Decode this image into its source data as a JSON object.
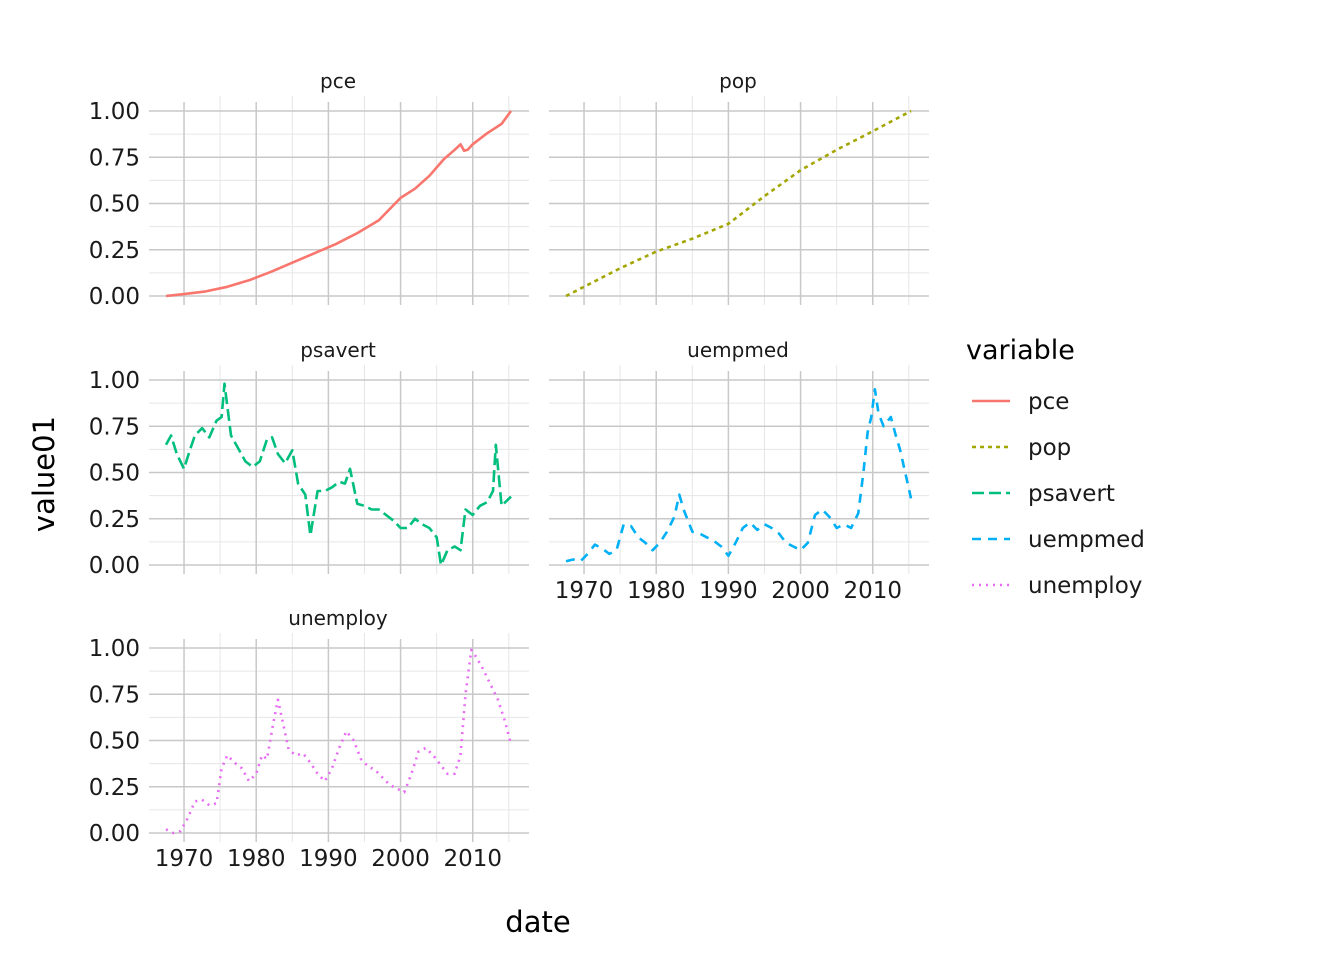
{
  "chart_data": {
    "type": "line",
    "facet_by": "variable",
    "xlabel": "date",
    "ylabel": "value01",
    "x_range": [
      1967.5,
      2015.3
    ],
    "x_ticks": [
      1970,
      1980,
      1990,
      2000,
      2010
    ],
    "x_tick_labels": [
      "1970",
      "1980",
      "1990",
      "2000",
      "2010"
    ],
    "ylim": [
      0,
      1
    ],
    "y_ticks": [
      0,
      0.25,
      0.5,
      0.75,
      1
    ],
    "y_tick_labels": [
      "0.00",
      "0.25",
      "0.50",
      "0.75",
      "1.00"
    ],
    "grid": true,
    "legend": {
      "title": "variable",
      "position": "right",
      "entries": [
        "pce",
        "pop",
        "psavert",
        "uempmed",
        "unemploy"
      ]
    },
    "series": [
      {
        "name": "pce",
        "color": "#F8766D",
        "linetype": "solid",
        "x": [
          1967.5,
          1970,
          1973,
          1976,
          1979,
          1982,
          1985,
          1988,
          1991,
          1994,
          1997,
          2000,
          2002,
          2004,
          2006,
          2007.5,
          2008.3,
          2008.8,
          2009.3,
          2010,
          2012,
          2014,
          2015.3
        ],
        "values": [
          0,
          0.01,
          0.025,
          0.05,
          0.085,
          0.13,
          0.18,
          0.23,
          0.28,
          0.34,
          0.41,
          0.53,
          0.58,
          0.65,
          0.74,
          0.79,
          0.82,
          0.785,
          0.79,
          0.82,
          0.88,
          0.93,
          1.0
        ]
      },
      {
        "name": "pop",
        "color": "#A3A500",
        "linetype": "dotted-dash",
        "x": [
          1967.5,
          1970,
          1975,
          1980,
          1985,
          1990,
          1995,
          2000,
          2005,
          2010,
          2015.3
        ],
        "values": [
          0,
          0.05,
          0.15,
          0.24,
          0.31,
          0.39,
          0.54,
          0.68,
          0.79,
          0.89,
          1.0
        ]
      },
      {
        "name": "psavert",
        "color": "#00BF7D",
        "linetype": "longdash",
        "x": [
          1967.5,
          1968.2,
          1969,
          1970,
          1970.8,
          1971.5,
          1972.5,
          1973.5,
          1974.5,
          1975.2,
          1975.6,
          1976.5,
          1977.5,
          1978.5,
          1979.5,
          1980.5,
          1981.5,
          1982.2,
          1983,
          1984,
          1985,
          1985.8,
          1986.8,
          1987.5,
          1988.5,
          1989.5,
          1990.5,
          1991.5,
          1992.3,
          1993,
          1994,
          1995,
          1996,
          1997,
          1998,
          1999,
          2000,
          2001,
          2002,
          2003,
          2004,
          2005,
          2005.6,
          2006.5,
          2007.5,
          2008.3,
          2009,
          2010,
          2011,
          2012,
          2012.8,
          2013.2,
          2014,
          2015.3
        ],
        "values": [
          0.65,
          0.7,
          0.6,
          0.52,
          0.62,
          0.7,
          0.74,
          0.69,
          0.78,
          0.8,
          0.98,
          0.7,
          0.63,
          0.56,
          0.53,
          0.56,
          0.68,
          0.69,
          0.6,
          0.55,
          0.62,
          0.44,
          0.38,
          0.16,
          0.4,
          0.4,
          0.42,
          0.45,
          0.44,
          0.52,
          0.33,
          0.32,
          0.3,
          0.3,
          0.27,
          0.24,
          0.2,
          0.2,
          0.25,
          0.22,
          0.2,
          0.15,
          0.0,
          0.08,
          0.1,
          0.08,
          0.3,
          0.27,
          0.32,
          0.34,
          0.4,
          0.65,
          0.32,
          0.37
        ]
      },
      {
        "name": "uempmed",
        "color": "#00B0F6",
        "linetype": "dashed",
        "x": [
          1967.5,
          1968.5,
          1969.5,
          1970.5,
          1971.5,
          1972.5,
          1973.5,
          1974.5,
          1975.5,
          1976.5,
          1977.5,
          1978.5,
          1979.5,
          1980.5,
          1981.5,
          1982.5,
          1983.2,
          1983.8,
          1985,
          1986,
          1987,
          1988,
          1989,
          1990,
          1991,
          1992,
          1993,
          1994,
          1995,
          1996,
          1997,
          1998,
          1999,
          2000,
          2001,
          2002,
          2003,
          2004,
          2005,
          2006,
          2007,
          2008,
          2008.7,
          2009.3,
          2009.8,
          2010.3,
          2010.8,
          2011.5,
          2012.5,
          2013.2,
          2013.8,
          2014.5,
          2015.3
        ],
        "values": [
          0.02,
          0.03,
          0.02,
          0.06,
          0.11,
          0.09,
          0.06,
          0.08,
          0.22,
          0.21,
          0.15,
          0.12,
          0.08,
          0.12,
          0.18,
          0.26,
          0.38,
          0.3,
          0.18,
          0.17,
          0.15,
          0.13,
          0.1,
          0.05,
          0.12,
          0.2,
          0.23,
          0.19,
          0.22,
          0.2,
          0.17,
          0.12,
          0.1,
          0.08,
          0.12,
          0.27,
          0.3,
          0.26,
          0.2,
          0.22,
          0.2,
          0.28,
          0.5,
          0.72,
          0.8,
          0.95,
          0.82,
          0.75,
          0.8,
          0.7,
          0.62,
          0.5,
          0.36
        ]
      },
      {
        "name": "unemploy",
        "color": "#E76BF3",
        "linetype": "dotted",
        "x": [
          1967.5,
          1968.5,
          1969.5,
          1970.5,
          1971.5,
          1972.5,
          1973.5,
          1974.5,
          1975.2,
          1976,
          1977,
          1978,
          1979,
          1980,
          1980.8,
          1981.5,
          1982.3,
          1983,
          1983.8,
          1984.5,
          1985.5,
          1986.5,
          1987.5,
          1988.5,
          1989.5,
          1990.5,
          1991.5,
          1992.5,
          1993.5,
          1994.5,
          1995.5,
          1996.5,
          1997.5,
          1998.5,
          1999.5,
          2000.5,
          2001.5,
          2002.5,
          2003.5,
          2004.5,
          2005.5,
          2006.5,
          2007.5,
          2008.3,
          2009,
          2009.8,
          2010.5,
          2011.5,
          2012.5,
          2013.5,
          2014.5,
          2015.3
        ],
        "values": [
          0.02,
          0.0,
          0.01,
          0.08,
          0.17,
          0.18,
          0.15,
          0.16,
          0.35,
          0.42,
          0.38,
          0.35,
          0.28,
          0.32,
          0.42,
          0.4,
          0.58,
          0.72,
          0.58,
          0.45,
          0.42,
          0.43,
          0.38,
          0.32,
          0.28,
          0.35,
          0.46,
          0.55,
          0.5,
          0.4,
          0.36,
          0.34,
          0.3,
          0.26,
          0.24,
          0.22,
          0.32,
          0.44,
          0.46,
          0.42,
          0.37,
          0.32,
          0.32,
          0.42,
          0.75,
          0.99,
          0.95,
          0.88,
          0.8,
          0.72,
          0.6,
          0.48
        ]
      }
    ]
  }
}
